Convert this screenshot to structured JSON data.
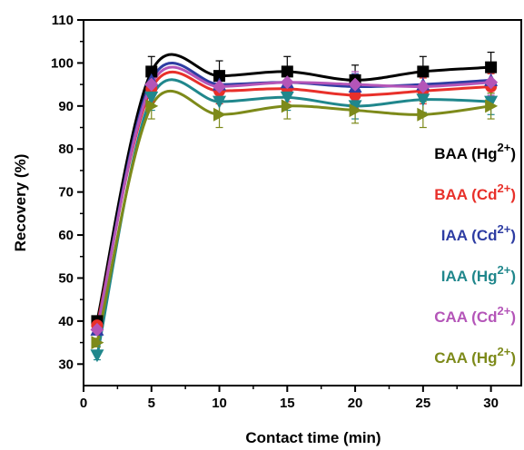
{
  "chart_data": {
    "type": "scatter",
    "xlabel": "Contact time (min)",
    "ylabel": "Recovery (%)",
    "xlim": [
      0,
      32.5
    ],
    "ylim": [
      25,
      110
    ],
    "x_ticks": [
      0,
      5,
      10,
      15,
      20,
      25,
      30
    ],
    "y_ticks": [
      30,
      40,
      50,
      60,
      70,
      80,
      90,
      100,
      110
    ],
    "legend_position": "right",
    "grid": false,
    "fitted_curves": true,
    "x": [
      1,
      5,
      10,
      15,
      20,
      25,
      30
    ],
    "series": [
      {
        "name_main": "BAA (Hg",
        "name_sup": "2+",
        "name_end": ")",
        "color": "#000000",
        "marker": "square",
        "values": [
          40,
          98,
          97,
          98,
          96,
          98,
          99
        ],
        "errors": [
          1,
          3.5,
          3.5,
          3.5,
          3.5,
          3.5,
          3.5
        ]
      },
      {
        "name_main": "BAA (Cd",
        "name_sup": "2+",
        "name_end": ")",
        "color": "#e8302a",
        "marker": "circle",
        "values": [
          39,
          94,
          93.5,
          94,
          92.5,
          93.5,
          94.5
        ],
        "errors": [
          1,
          3,
          3,
          3,
          3,
          3,
          3
        ]
      },
      {
        "name_main": "IAA (Cd",
        "name_sup": "2+",
        "name_end": ")",
        "color": "#2e3da3",
        "marker": "triangle-up",
        "values": [
          38,
          96,
          95,
          95.5,
          94.5,
          95,
          96
        ],
        "errors": [
          1,
          3,
          3,
          3,
          3,
          3,
          3
        ]
      },
      {
        "name_main": "IAA (Hg",
        "name_sup": "2+",
        "name_end": ")",
        "color": "#20878c",
        "marker": "triangle-down",
        "values": [
          32,
          92,
          91,
          92,
          90,
          91.5,
          91
        ],
        "errors": [
          1,
          3,
          3,
          3,
          3,
          3,
          3
        ]
      },
      {
        "name_main": "CAA (Cd",
        "name_sup": "2+",
        "name_end": ")",
        "color": "#b455b8",
        "marker": "diamond",
        "values": [
          38,
          95,
          94.5,
          95.5,
          95,
          94.5,
          95.5
        ],
        "errors": [
          1,
          3,
          3,
          3,
          3,
          3,
          3
        ]
      },
      {
        "name_main": "CAA (Hg",
        "name_sup": "2+",
        "name_end": ")",
        "color": "#7d8a1a",
        "marker": "triangle-right",
        "values": [
          35,
          90,
          88,
          90,
          89,
          88,
          90
        ],
        "errors": [
          1,
          3,
          3,
          3,
          3,
          3,
          3
        ]
      }
    ]
  }
}
